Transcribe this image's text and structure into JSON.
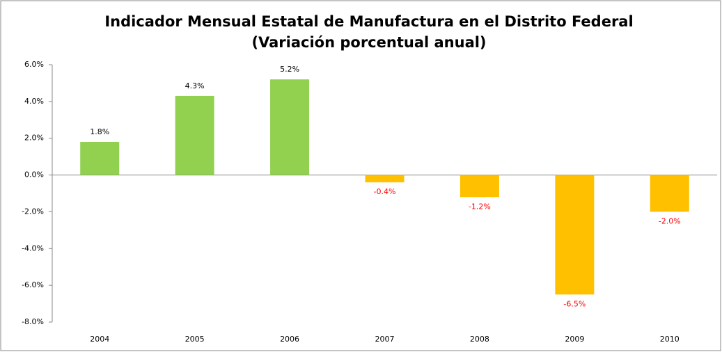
{
  "chart_data": {
    "type": "bar",
    "title": "Indicador Mensual Estatal de Manufactura en el Distrito Federal",
    "subtitle": "(Variación porcentual anual)",
    "categories": [
      "2004",
      "2005",
      "2006",
      "2007",
      "2008",
      "2009",
      "2010"
    ],
    "values": [
      1.8,
      4.3,
      5.2,
      -0.4,
      -1.2,
      -6.5,
      -2.0
    ],
    "value_labels": [
      "1.8%",
      "4.3%",
      "5.2%",
      "-0.4%",
      "-1.2%",
      "-6.5%",
      "-2.0%"
    ],
    "colors": [
      "#92d050",
      "#92d050",
      "#92d050",
      "#ffc000",
      "#ffc000",
      "#ffc000",
      "#ffc000"
    ],
    "label_colors": [
      "#000000",
      "#000000",
      "#000000",
      "#ff0000",
      "#ff0000",
      "#ff0000",
      "#ff0000"
    ],
    "ylim": [
      -8,
      6
    ],
    "yticks": [
      {
        "value": -8,
        "label": "-8.0%"
      },
      {
        "value": -6,
        "label": "-6.0%"
      },
      {
        "value": -4,
        "label": "-4.0%"
      },
      {
        "value": -2,
        "label": "-2.0%"
      },
      {
        "value": 0,
        "label": "0.0%"
      },
      {
        "value": 2,
        "label": "2.0%"
      },
      {
        "value": 4,
        "label": "4.0%"
      },
      {
        "value": 6,
        "label": "6.0%"
      }
    ],
    "grid": false
  }
}
